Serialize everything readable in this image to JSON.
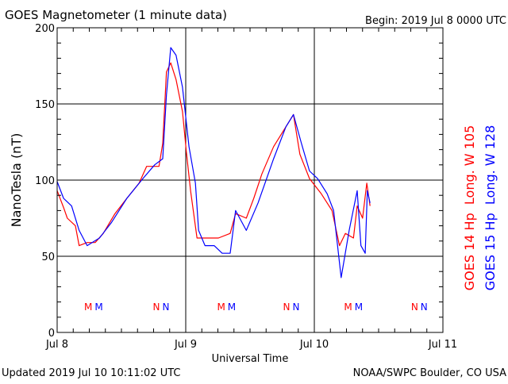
{
  "chart_data": {
    "type": "line",
    "title": "GOES Magnetometer (1 minute data)",
    "begin": "Begin:  2019 Jul 8 0000 UTC",
    "xlabel": "Universal Time",
    "ylabel": "NanoTesla (nT)",
    "xlim_hours": [
      0,
      72
    ],
    "ylim": [
      0,
      200
    ],
    "yticks": [
      "0",
      "50",
      "100",
      "150",
      "200"
    ],
    "xticks": [
      "Jul 8",
      "Jul 9",
      "Jul 10",
      "Jul 11"
    ],
    "grid": true,
    "legend": [
      {
        "label": "GOES 14 Hp  Long. W 105",
        "color": "#ff0000"
      },
      {
        "label": "GOES 15 Hp  Long. W 128",
        "color": "#0000ff"
      }
    ],
    "series": [
      {
        "name": "GOES 14 Hp",
        "color": "#ff0000",
        "x": [
          0,
          1.2,
          1.9,
          3.4,
          4.1,
          5.6,
          7.1,
          8.6,
          10.8,
          13.0,
          15.3,
          16.7,
          19.0,
          19.7,
          20.4,
          21.2,
          22.2,
          23.4,
          24.1,
          24.9,
          26.1,
          27.1,
          28.6,
          30.1,
          32.3,
          33.3,
          35.3,
          36.7,
          38.2,
          40.4,
          42.7,
          44.1,
          45.3,
          47.1,
          49.3,
          51.3,
          52.7,
          53.8,
          55.3,
          56.0,
          57.0,
          57.8,
          58.4
        ],
        "y": [
          93,
          82,
          75,
          70,
          57,
          59,
          59,
          65,
          78,
          88,
          98,
          109,
          109,
          124,
          171,
          177,
          166,
          145,
          119,
          93,
          62,
          62,
          62,
          62,
          65,
          78,
          75,
          88,
          104,
          122,
          135,
          143,
          117,
          101,
          91,
          80,
          57,
          65,
          62,
          83,
          75,
          98,
          83
        ]
      },
      {
        "name": "GOES 15 Hp",
        "color": "#0000ff",
        "x": [
          0,
          1.2,
          2.7,
          4.1,
          5.6,
          7.9,
          10.1,
          13.0,
          16.0,
          18.2,
          19.7,
          20.4,
          21.2,
          22.2,
          23.4,
          24.6,
          25.8,
          26.4,
          27.6,
          29.3,
          30.8,
          32.3,
          33.3,
          35.3,
          37.5,
          40.4,
          42.7,
          44.1,
          45.6,
          47.1,
          48.6,
          50.4,
          51.6,
          53.0,
          54.5,
          56.0,
          56.7,
          57.5,
          57.9,
          58.4
        ],
        "y": [
          99,
          88,
          83,
          67,
          57,
          62,
          72,
          88,
          101,
          110,
          114,
          156,
          187,
          182,
          161,
          122,
          98,
          67,
          57,
          57,
          52,
          52,
          80,
          67,
          85,
          114,
          135,
          143,
          124,
          106,
          101,
          91,
          80,
          36,
          67,
          93,
          57,
          52,
          93,
          85
        ]
      }
    ],
    "markers": [
      {
        "hour": 6.8,
        "letter": "M"
      },
      {
        "hour": 19.4,
        "letter": "N"
      },
      {
        "hour": 31.6,
        "letter": "M"
      },
      {
        "hour": 43.7,
        "letter": "N"
      },
      {
        "hour": 55.3,
        "letter": "M"
      },
      {
        "hour": 67.6,
        "letter": "N"
      }
    ]
  },
  "footer": {
    "updated": "Updated 2019 Jul 10 10:11:02 UTC",
    "credit": "NOAA/SWPC Boulder, CO USA"
  }
}
